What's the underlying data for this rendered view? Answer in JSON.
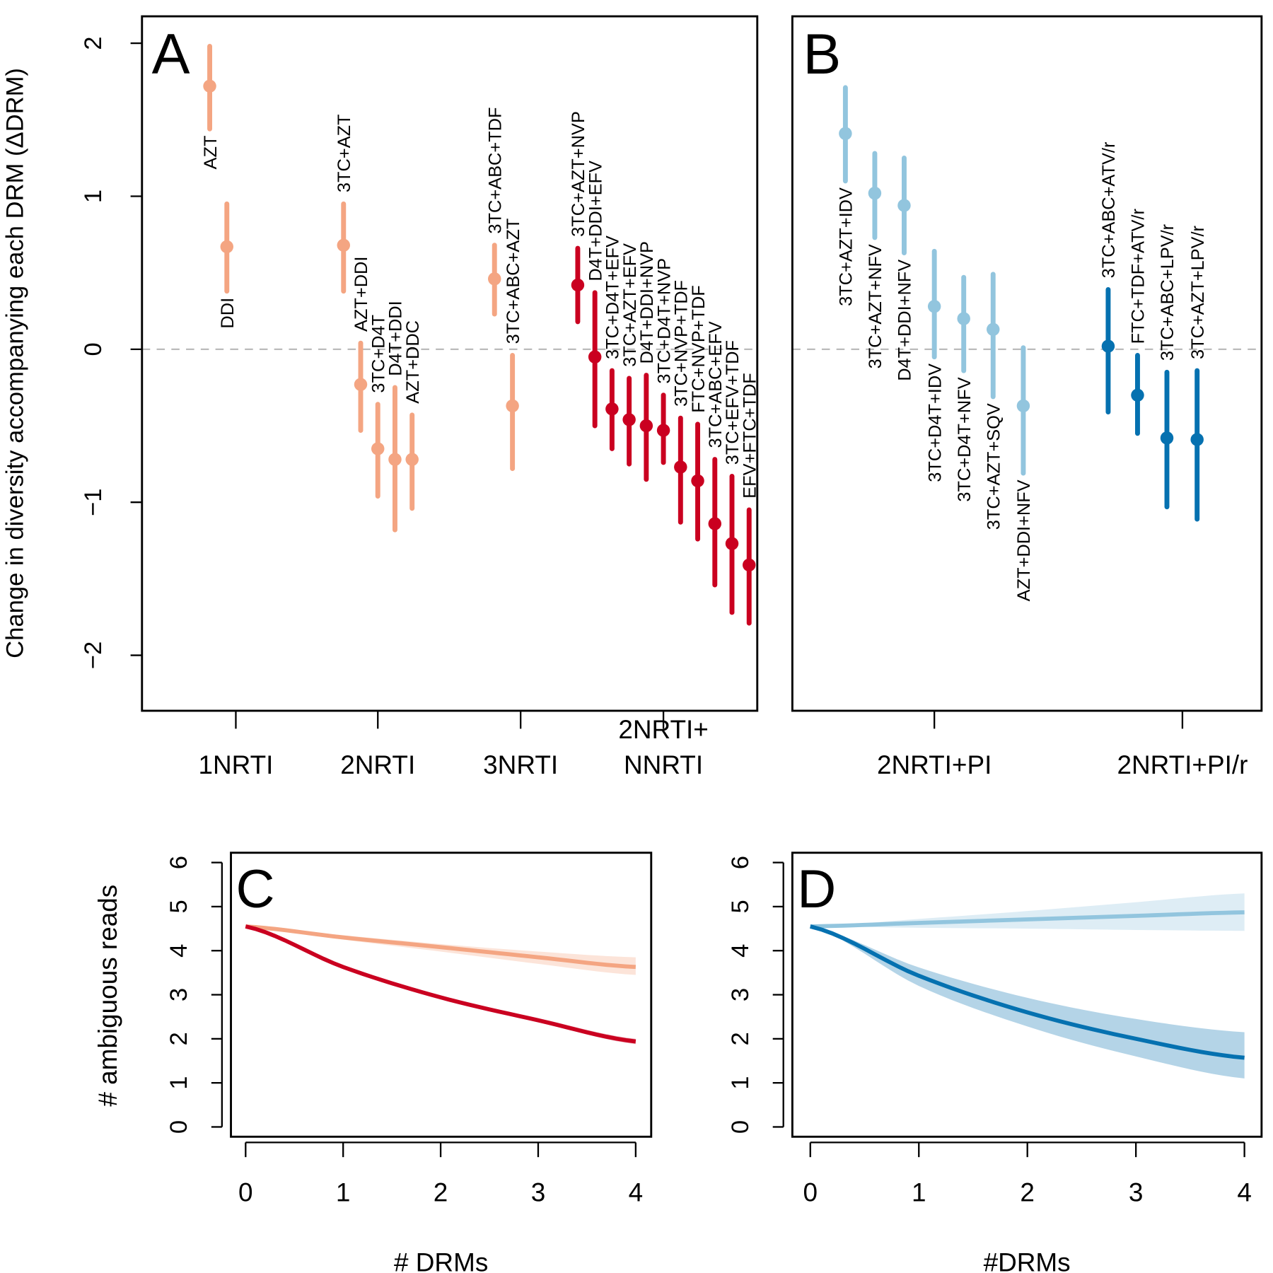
{
  "colors": {
    "nrti_only": "#f4a582",
    "nnrti": "#ca0020",
    "pi": "#92c5de",
    "pi_r": "#0571b0",
    "reference_line": "#bbbbbb"
  },
  "chart_data": [
    {
      "panel": "A",
      "type": "scatter",
      "ylabel": "Change in diversity accompanying each DRM (ΔDRM)",
      "ylim": [
        -2.37,
        2.17
      ],
      "yticks": [
        -2,
        -1,
        0,
        1,
        2
      ],
      "reference_line": 0,
      "groups": [
        {
          "label": "1NRTI",
          "color_key": "nrti_only",
          "points": [
            {
              "label": "AZT",
              "y": 1.72,
              "lo": 1.44,
              "hi": 1.98
            },
            {
              "label": "DDI",
              "y": 0.67,
              "lo": 0.38,
              "hi": 0.95
            }
          ]
        },
        {
          "label": "2NRTI",
          "color_key": "nrti_only",
          "points": [
            {
              "label": "3TC+AZT",
              "y": 0.68,
              "lo": 0.38,
              "hi": 0.95
            },
            {
              "label": "AZT+DDI",
              "y": -0.23,
              "lo": -0.53,
              "hi": 0.04
            },
            {
              "label": "3TC+D4T",
              "y": -0.65,
              "lo": -0.96,
              "hi": -0.36
            },
            {
              "label": "D4T+DDI",
              "y": -0.72,
              "lo": -1.18,
              "hi": -0.25
            },
            {
              "label": "AZT+DDC",
              "y": -0.72,
              "lo": -1.04,
              "hi": -0.43
            }
          ]
        },
        {
          "label": "3NRTI",
          "color_key": "nrti_only",
          "points": [
            {
              "label": "3TC+ABC+TDF",
              "y": 0.46,
              "lo": 0.23,
              "hi": 0.68
            },
            {
              "label": "3TC+ABC+AZT",
              "y": -0.37,
              "lo": -0.78,
              "hi": -0.04
            }
          ]
        },
        {
          "label": "2NRTI+ NNRTI",
          "label_lines": [
            "2NRTI+",
            "NNRTI"
          ],
          "color_key": "nnrti",
          "points": [
            {
              "label": "3TC+AZT+NVP",
              "y": 0.42,
              "lo": 0.18,
              "hi": 0.66
            },
            {
              "label": "D4T+DDI+EFV",
              "y": -0.05,
              "lo": -0.5,
              "hi": 0.37
            },
            {
              "label": "3TC+D4T+EFV",
              "y": -0.39,
              "lo": -0.65,
              "hi": -0.14
            },
            {
              "label": "3TC+AZT+EFV",
              "y": -0.46,
              "lo": -0.75,
              "hi": -0.19
            },
            {
              "label": "D4T+DDI+NVP",
              "y": -0.5,
              "lo": -0.85,
              "hi": -0.17
            },
            {
              "label": "3TC+D4T+NVP",
              "y": -0.53,
              "lo": -0.74,
              "hi": -0.3
            },
            {
              "label": "3TC+NVP+TDF",
              "y": -0.77,
              "lo": -1.13,
              "hi": -0.45
            },
            {
              "label": "FTC+NVP+TDF",
              "y": -0.86,
              "lo": -1.24,
              "hi": -0.49
            },
            {
              "label": "3TC+ABC+EFV",
              "y": -1.14,
              "lo": -1.54,
              "hi": -0.72
            },
            {
              "label": "3TC+EFV+TDF",
              "y": -1.27,
              "lo": -1.72,
              "hi": -0.83
            },
            {
              "label": "EFV+FTC+TDF",
              "y": -1.41,
              "lo": -1.79,
              "hi": -1.05
            }
          ]
        }
      ]
    },
    {
      "panel": "B",
      "type": "scatter",
      "ylim": [
        -2.37,
        2.17
      ],
      "reference_line": 0,
      "groups": [
        {
          "label": "2NRTI+PI",
          "color_key": "pi",
          "points": [
            {
              "label": "3TC+AZT+IDV",
              "y": 1.41,
              "lo": 1.1,
              "hi": 1.71
            },
            {
              "label": "3TC+AZT+NFV",
              "y": 1.02,
              "lo": 0.73,
              "hi": 1.28
            },
            {
              "label": "D4T+DDI+NFV",
              "y": 0.94,
              "lo": 0.63,
              "hi": 1.25
            },
            {
              "label": "3TC+D4T+IDV",
              "y": 0.28,
              "lo": -0.05,
              "hi": 0.64
            },
            {
              "label": "3TC+D4T+NFV",
              "y": 0.2,
              "lo": -0.14,
              "hi": 0.47
            },
            {
              "label": "3TC+AZT+SQV",
              "y": 0.13,
              "lo": -0.31,
              "hi": 0.49
            },
            {
              "label": "AZT+DDI+NFV",
              "y": -0.37,
              "lo": -0.81,
              "hi": 0.01
            }
          ]
        },
        {
          "label": "2NRTI+PI/r",
          "color_key": "pi_r",
          "points": [
            {
              "label": "3TC+ABC+ATV/r",
              "y": 0.02,
              "lo": -0.41,
              "hi": 0.39
            },
            {
              "label": "FTC+TDF+ATV/r",
              "y": -0.3,
              "lo": -0.55,
              "hi": -0.04
            },
            {
              "label": "3TC+ABC+LPV/r",
              "y": -0.58,
              "lo": -1.03,
              "hi": -0.15
            },
            {
              "label": "3TC+AZT+LPV/r",
              "y": -0.59,
              "lo": -1.11,
              "hi": -0.14
            }
          ]
        }
      ]
    },
    {
      "panel": "C",
      "type": "line",
      "xlabel": "# DRMs",
      "ylabel": "# ambiguous reads",
      "xlim": [
        0,
        4
      ],
      "ylim": [
        0,
        6
      ],
      "xticks": [
        0,
        1,
        2,
        3,
        4
      ],
      "yticks": [
        0,
        1,
        2,
        3,
        4,
        5,
        6
      ],
      "x": [
        0,
        1,
        2,
        3,
        4
      ],
      "series": [
        {
          "color_key": "nrti_only",
          "y": [
            4.55,
            4.3,
            4.08,
            3.85,
            3.63
          ],
          "lo": [
            4.55,
            4.25,
            3.98,
            3.7,
            3.45
          ],
          "hi": [
            4.55,
            4.35,
            4.15,
            3.98,
            3.85
          ]
        },
        {
          "color_key": "nnrti",
          "y": [
            4.55,
            3.63,
            2.94,
            2.42,
            1.94
          ],
          "lo": [
            4.53,
            3.6,
            2.9,
            2.38,
            1.88
          ],
          "hi": [
            4.57,
            3.66,
            2.98,
            2.47,
            2.0
          ]
        }
      ]
    },
    {
      "panel": "D",
      "type": "line",
      "xlabel": "#DRMs",
      "xlim": [
        0,
        4
      ],
      "ylim": [
        0,
        6
      ],
      "xticks": [
        0,
        1,
        2,
        3,
        4
      ],
      "yticks": [
        0,
        1,
        2,
        3,
        4,
        5,
        6
      ],
      "x": [
        0,
        1,
        2,
        3,
        4
      ],
      "series": [
        {
          "color_key": "pi",
          "y": [
            4.55,
            4.63,
            4.71,
            4.79,
            4.87
          ],
          "lo": [
            4.55,
            4.52,
            4.5,
            4.47,
            4.45
          ],
          "hi": [
            4.55,
            4.72,
            4.9,
            5.1,
            5.3
          ]
        },
        {
          "color_key": "pi_r",
          "y": [
            4.55,
            3.43,
            2.6,
            2.0,
            1.57
          ],
          "lo": [
            4.55,
            3.2,
            2.28,
            1.6,
            1.1
          ],
          "hi": [
            4.55,
            3.62,
            2.93,
            2.45,
            2.15
          ]
        }
      ]
    }
  ]
}
